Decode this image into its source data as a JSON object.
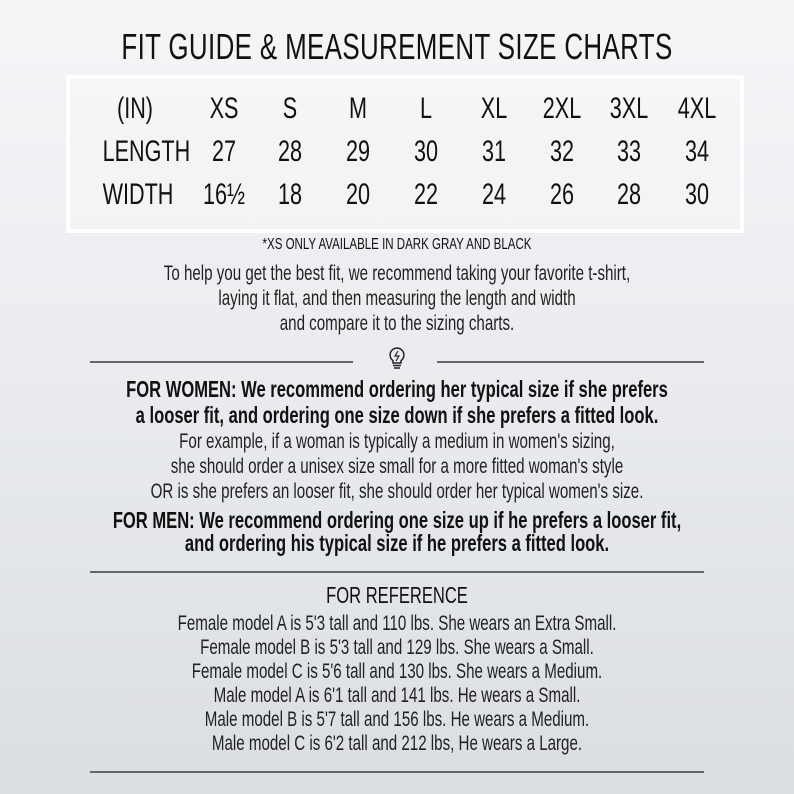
{
  "title": "FIT GUIDE & MEASUREMENT SIZE CHARTS",
  "table": {
    "headers": [
      "(IN)",
      "XS",
      "S",
      "M",
      "L",
      "XL",
      "2XL",
      "3XL",
      "4XL"
    ],
    "rows": [
      [
        "LENGTH",
        "27",
        "28",
        "29",
        "30",
        "31",
        "32",
        "33",
        "34"
      ],
      [
        "WIDTH",
        "16½",
        "18",
        "20",
        "22",
        "24",
        "26",
        "28",
        "30"
      ]
    ]
  },
  "note": "*XS ONLY AVAILABLE IN DARK GRAY AND BLACK",
  "intro": [
    "To help you get the best fit, we recommend taking your favorite t-shirt,",
    "laying it flat, and then measuring the length and width",
    "and compare it to the sizing charts."
  ],
  "divider_icon": "lightbulb-icon",
  "women": {
    "bold": [
      "FOR WOMEN: We recommend ordering her typical size if she prefers",
      "a looser fit, and ordering one size down if she prefers a fitted look."
    ],
    "example": [
      "For example, if a woman is typically a medium in women's sizing,",
      "she should order a unisex size small for a more fitted woman's style",
      "OR is she prefers an looser fit, she should order her typical women's size."
    ]
  },
  "men": {
    "bold": [
      "FOR MEN: We recommend ordering one size up if he prefers a looser fit,",
      "and ordering his typical size if he prefers a fitted look."
    ]
  },
  "reference": {
    "heading": "FOR REFERENCE",
    "lines": [
      "Female model A is 5'3 tall and 110 lbs. She wears an Extra Small.",
      "Female model B is 5'3 tall and 129 lbs. She wears a Small.",
      "Female model C is 5'6 tall and 130 lbs. She wears a Medium.",
      "Male model A is 6'1 tall and 141 lbs. He wears a Small.",
      "Male model B is 5'7 tall and 156 lbs. He wears a Medium.",
      "Male model C is 6'2 tall and 212 lbs, He wears a Large."
    ]
  }
}
